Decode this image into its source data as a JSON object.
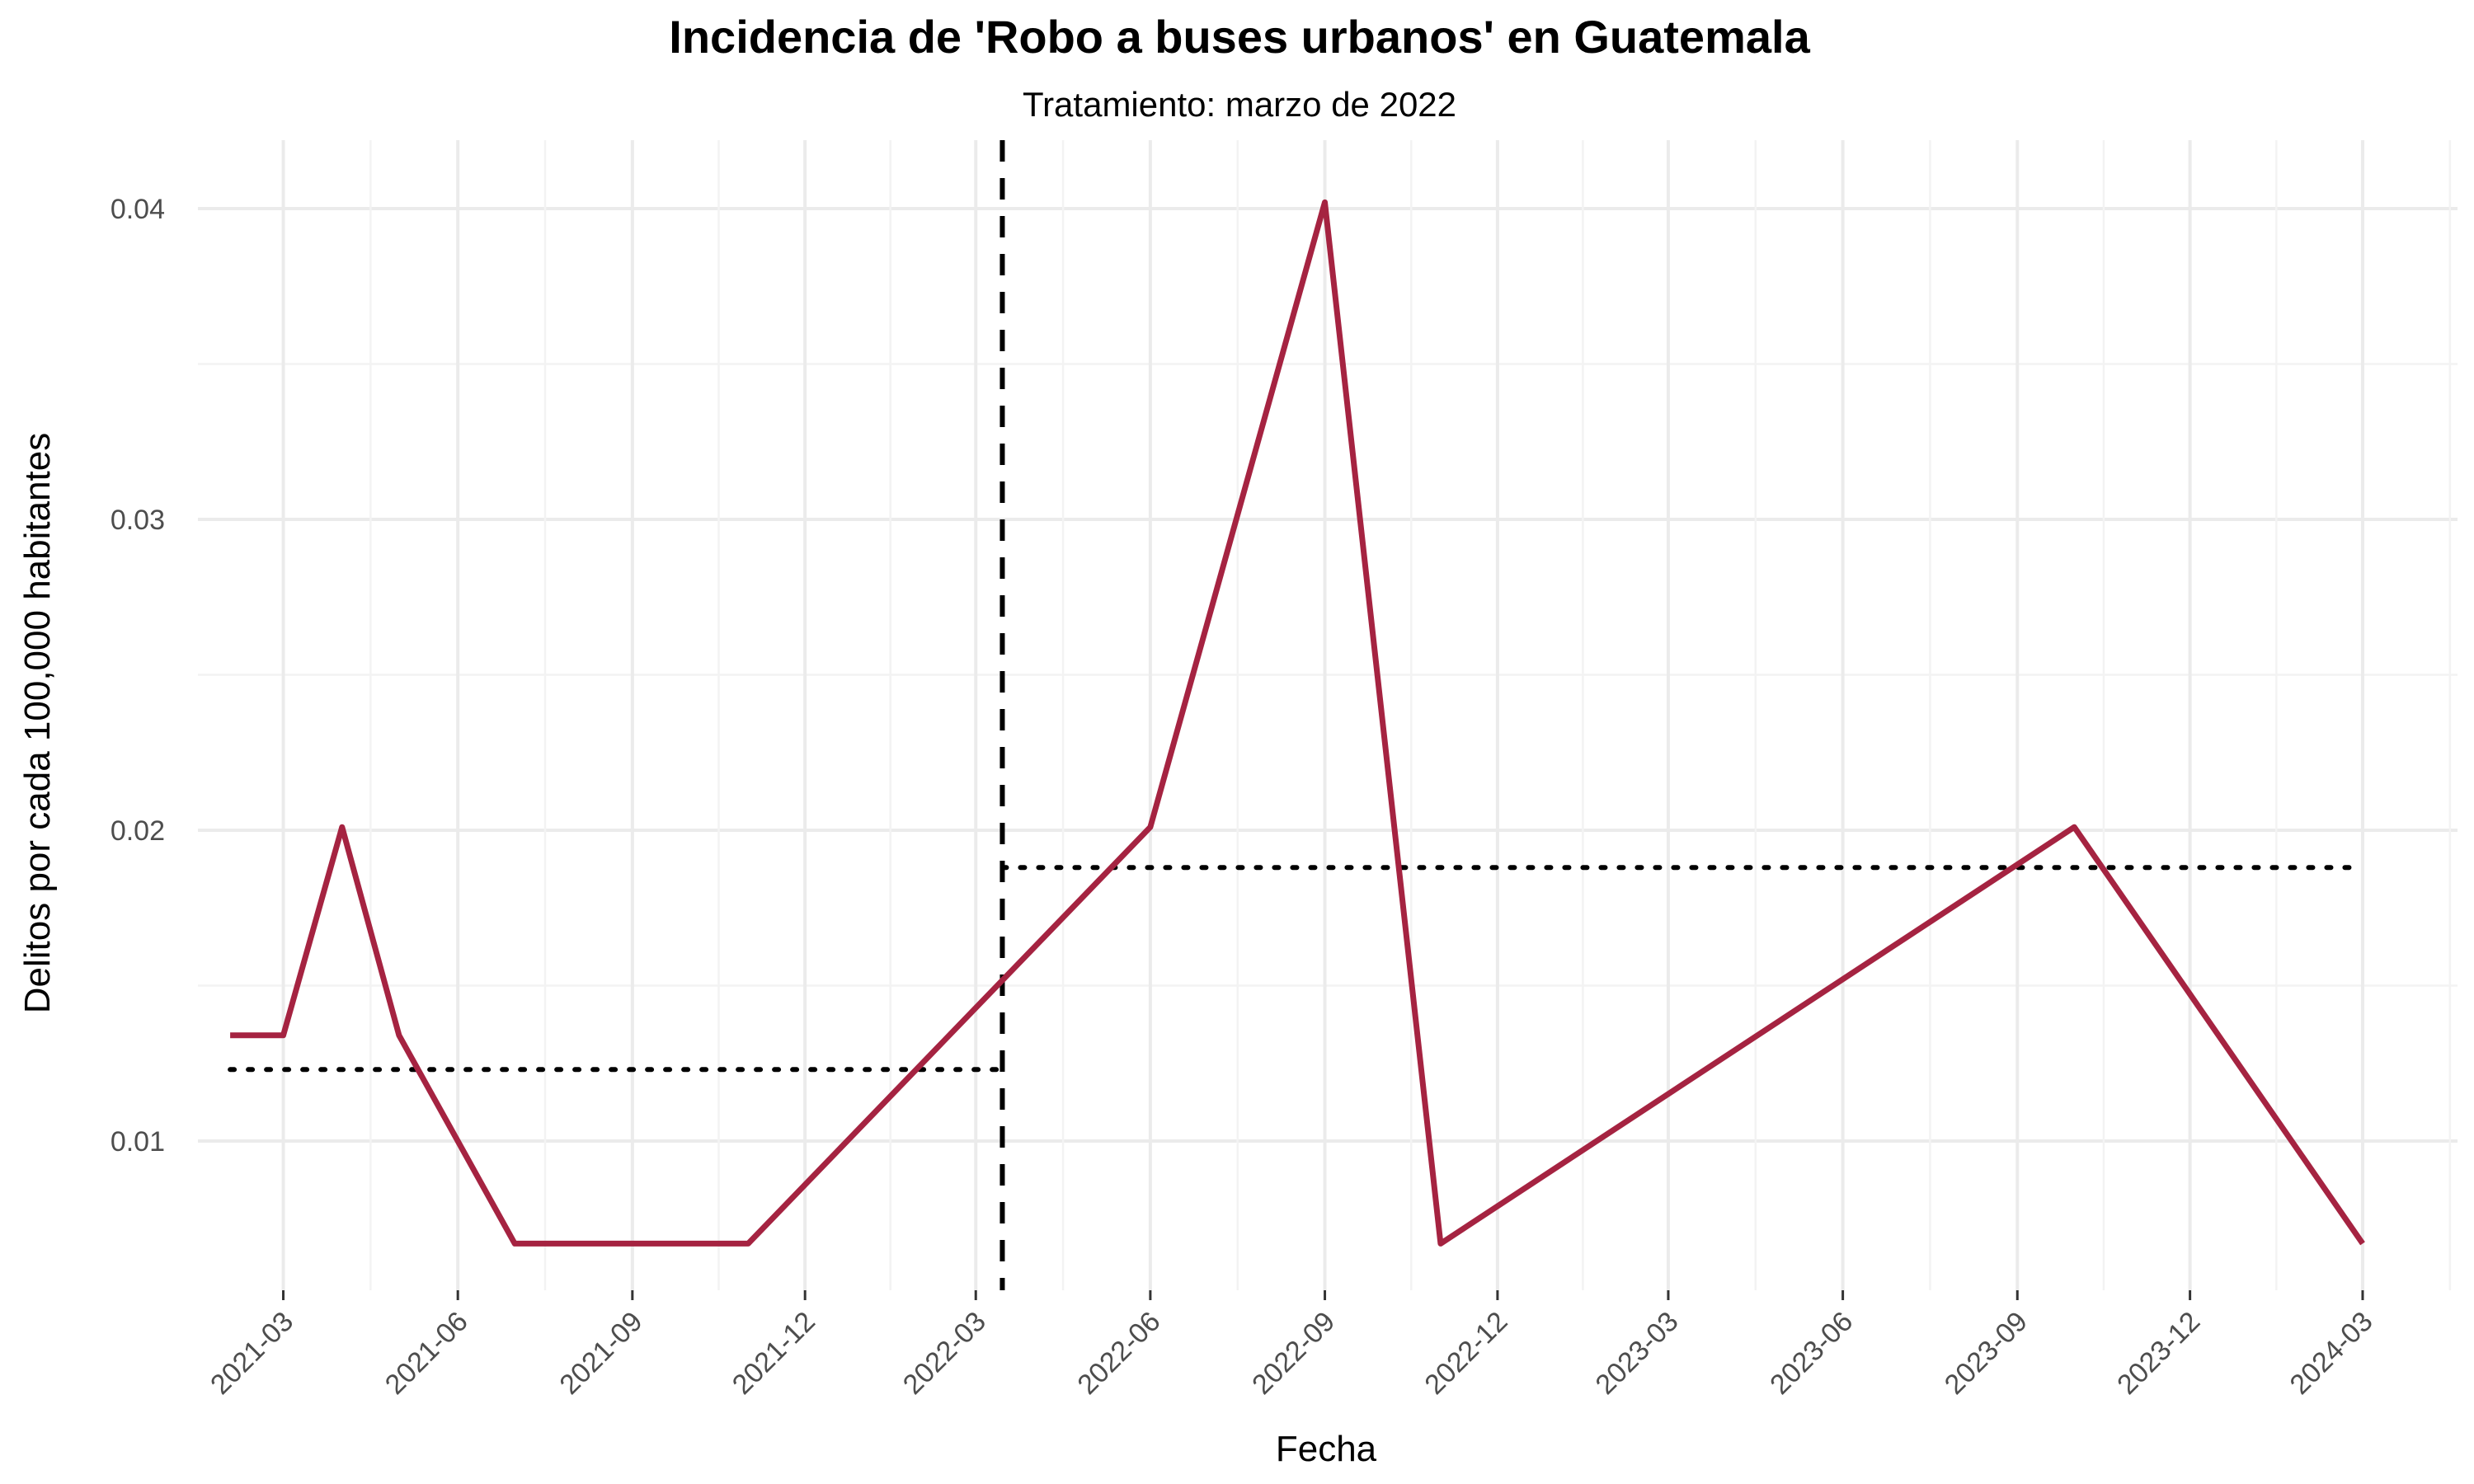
{
  "chart_data": {
    "type": "line",
    "title": "Incidencia de 'Robo a buses urbanos' en Guatemala",
    "subtitle": "Tratamiento: marzo de 2022",
    "xlabel": "Fecha",
    "ylabel": "Delitos por cada 100,000 habitantes",
    "x_tick_labels": [
      "2021-03",
      "2021-06",
      "2021-09",
      "2021-12",
      "2022-03",
      "2022-06",
      "2022-09",
      "2022-12",
      "2023-03",
      "2023-06",
      "2023-09",
      "2023-12",
      "2024-03"
    ],
    "x_range": [
      "2021-01-15",
      "2024-04-20"
    ],
    "y_ticks": [
      0.01,
      0.02,
      0.03,
      0.04
    ],
    "y_tick_labels": [
      "0.01",
      "0.02",
      "0.03",
      "0.04"
    ],
    "ylim": [
      0.0052,
      0.0422
    ],
    "grid": true,
    "series": [
      {
        "color": "#a52341",
        "x": [
          "2021-02-01",
          "2021-03-01",
          "2021-04-01",
          "2021-05-01",
          "2021-07-01",
          "2021-11-01",
          "2022-06-01",
          "2022-09-01",
          "2022-11-01",
          "2023-10-01",
          "2024-03-01"
        ],
        "y": [
          0.0134,
          0.0134,
          0.0201,
          0.0134,
          0.0067,
          0.0067,
          0.0201,
          0.0402,
          0.0067,
          0.0201,
          0.0067
        ]
      }
    ],
    "treatment_line": {
      "x": "2022-03-15",
      "style": "dashed",
      "color": "#000000"
    },
    "mean_lines": [
      {
        "x_start": "2021-02-01",
        "x_end": "2022-03-15",
        "y": 0.0123,
        "style": "dotted",
        "color": "#000000"
      },
      {
        "x_start": "2022-03-15",
        "x_end": "2024-03-01",
        "y": 0.0188,
        "style": "dotted",
        "color": "#000000"
      }
    ]
  }
}
